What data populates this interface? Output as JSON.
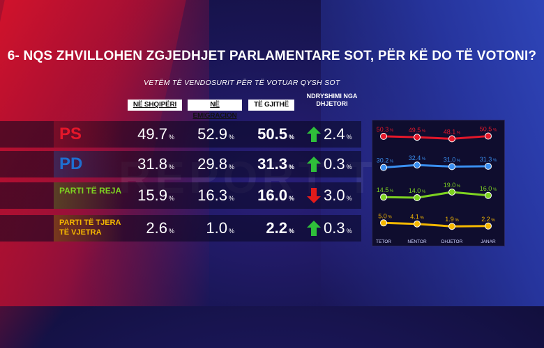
{
  "title": "6- NQS ZHVILLOHEN ZGJEDHJET PARLAMENTARE SOT, PËR KË DO TË VOTONI?",
  "subtitle": "VETËM TË VENDOSURIT PËR TË VOTUAR QYSH SOT",
  "watermark": "REPORT TV",
  "columns": {
    "albania": "NË SHQIPËRI",
    "emigration": "NË EMIGRACION",
    "all": "TË GJITHË",
    "change": "NDRYSHIMI NGA DHJETORI"
  },
  "percent_sign": "%",
  "colors": {
    "ps": "#e5172a",
    "pd": "#1f6fd0",
    "new": "#7ed321",
    "old": "#f5b800",
    "up": "#2fbf3a",
    "down": "#e21b1b"
  },
  "rows": [
    {
      "party": "PS",
      "albania": "49.7",
      "emigration": "52.9",
      "all": "50.5",
      "direction": "up",
      "change": "2.4"
    },
    {
      "party": "PD",
      "albania": "31.8",
      "emigration": "29.8",
      "all": "31.3",
      "direction": "up",
      "change": "0.3"
    },
    {
      "party": "PARTI TË REJA",
      "albania": "15.9",
      "emigration": "16.3",
      "all": "16.0",
      "direction": "down",
      "change": "3.0"
    },
    {
      "party": "PARTI TË TJERA TË VJETRA",
      "albania": "2.6",
      "emigration": "1.0",
      "all": "2.2",
      "direction": "up",
      "change": "0.3"
    }
  ],
  "chart_data": {
    "type": "line",
    "categories": [
      "TETOR",
      "NËNTOR",
      "DHJETOR",
      "JANAR"
    ],
    "series": [
      {
        "name": "PS",
        "color": "#e5172a",
        "values": [
          50.3,
          49.5,
          48.1,
          50.5
        ]
      },
      {
        "name": "PD",
        "color": "#3a8ff0",
        "values": [
          30.2,
          32.4,
          31.0,
          31.3
        ]
      },
      {
        "name": "PARTI TË REJA",
        "color": "#7ed321",
        "values": [
          14.5,
          14.0,
          19.0,
          16.0
        ]
      },
      {
        "name": "PARTI TË TJERA TË VJETRA",
        "color": "#f5b800",
        "values": [
          5.0,
          4.1,
          1.9,
          2.2
        ]
      }
    ],
    "grid": false,
    "legend": "none"
  }
}
